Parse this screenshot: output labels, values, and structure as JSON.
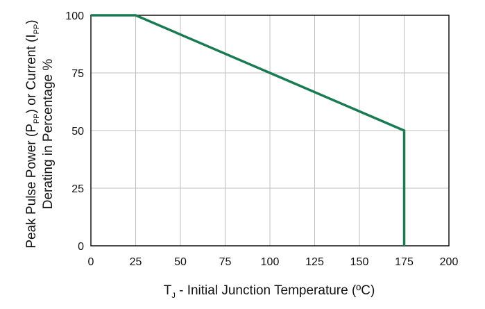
{
  "chart_data": {
    "type": "line",
    "x": [
      0,
      25,
      175,
      175
    ],
    "series": [
      {
        "values": [
          100,
          100,
          50,
          0
        ]
      }
    ],
    "xlim": [
      0,
      200
    ],
    "ylim": [
      0,
      100
    ],
    "x_ticks": [
      0,
      25,
      50,
      75,
      100,
      125,
      150,
      175,
      200
    ],
    "y_ticks": [
      0,
      25,
      50,
      75,
      100
    ],
    "xlabel": {
      "main": "T",
      "sub": "J",
      "rest": " - Initial Junction Temperature (ºC)"
    },
    "ylabel": {
      "line1_a": "Peak Pulse Power (P",
      "line1_sub1": "PP",
      "line1_b": ") or Current (I",
      "line1_sub2": "PP",
      "line1_c": ")",
      "line2": "Derating in Percentage %"
    },
    "grid": true,
    "line_color": "#1a7a52",
    "grid_color": "#bfbfbf"
  }
}
